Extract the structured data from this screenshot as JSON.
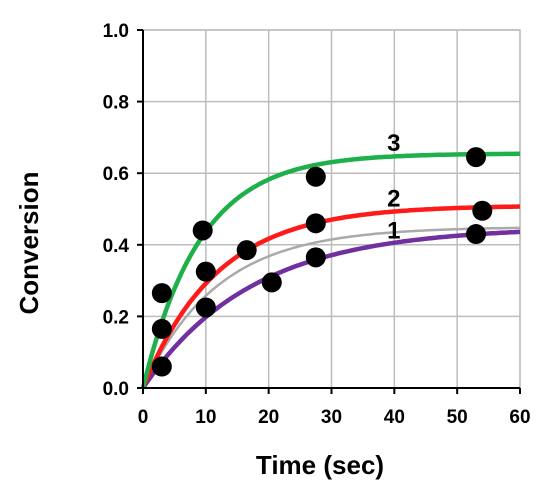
{
  "chart_data": {
    "type": "scatter",
    "title": "",
    "xlabel": "Time (sec)",
    "ylabel": "Conversion",
    "xlim": [
      0,
      60
    ],
    "ylim": [
      0,
      1.0
    ],
    "x_ticks": [
      "0",
      "10",
      "20",
      "30",
      "40",
      "50",
      "60"
    ],
    "y_ticks": [
      "0.0",
      "0.2",
      "0.4",
      "0.6",
      "0.8",
      "1.0"
    ],
    "grid": true,
    "series": [
      {
        "name": "1",
        "color": "#7030a0",
        "fit_plateau": 0.45,
        "fit_rate": 0.058,
        "points": [
          [
            3,
            0.06
          ],
          [
            10,
            0.225
          ],
          [
            20.5,
            0.295
          ],
          [
            27.5,
            0.365
          ],
          [
            53,
            0.43
          ]
        ]
      },
      {
        "name": "2",
        "color": "#ff1a1a",
        "fit_plateau": 0.51,
        "fit_rate": 0.085,
        "points": [
          [
            3,
            0.165
          ],
          [
            10,
            0.325
          ],
          [
            16.5,
            0.385
          ],
          [
            27.5,
            0.46
          ],
          [
            54,
            0.495
          ]
        ]
      },
      {
        "name": "3",
        "color": "#1db04b",
        "fit_plateau": 0.655,
        "fit_rate": 0.11,
        "points": [
          [
            3,
            0.265
          ],
          [
            9.5,
            0.44
          ],
          [
            27.5,
            0.59
          ],
          [
            53,
            0.645
          ]
        ]
      }
    ],
    "guide_curves": [
      {
        "color": "#aaaaaa",
        "fit_plateau": 0.45,
        "fit_rate": 0.085
      }
    ]
  }
}
